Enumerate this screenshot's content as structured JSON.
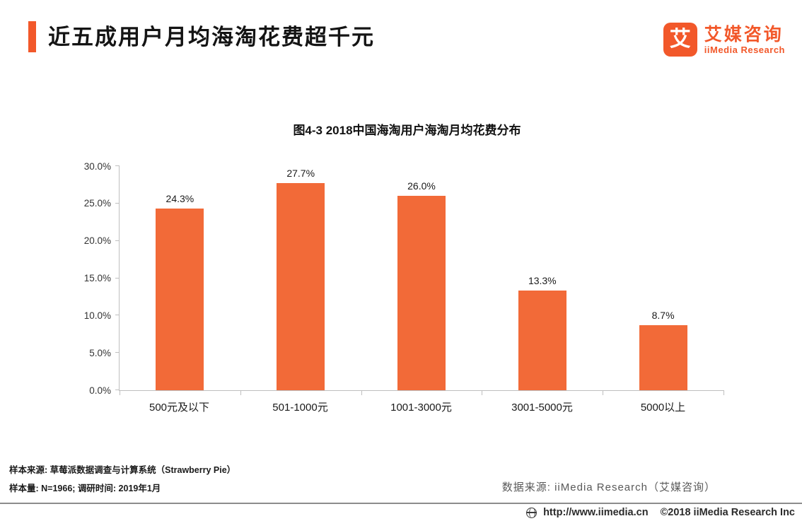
{
  "header": {
    "title": "近五成用户月均海淘花费超千元",
    "logo": {
      "glyph": "艾",
      "brand_cn": "艾媒咨询",
      "brand_en": "iiMedia Research"
    }
  },
  "chart_data": {
    "type": "bar",
    "title": "图4-3 2018中国海淘用户海淘月均花费分布",
    "categories": [
      "500元及以下",
      "501-1000元",
      "1001-3000元",
      "3001-5000元",
      "5000以上"
    ],
    "values": [
      24.3,
      27.7,
      26.0,
      13.3,
      8.7
    ],
    "value_labels": [
      "24.3%",
      "27.7%",
      "26.0%",
      "13.3%",
      "8.7%"
    ],
    "xlabel": "",
    "ylabel": "",
    "ylim": [
      0,
      30
    ],
    "yticks": [
      0,
      5,
      10,
      15,
      20,
      25,
      30
    ],
    "ytick_labels": [
      "0.0%",
      "5.0%",
      "10.0%",
      "15.0%",
      "20.0%",
      "25.0%",
      "30.0%"
    ],
    "grid": false,
    "legend": false,
    "bar_color": "#F26A38"
  },
  "footer": {
    "sample_source": "样本来源: 草莓派数据调查与计算系统（Strawberry Pie）",
    "sample_size": "样本量: N=1966; 调研时间: 2019年1月",
    "data_source": "数据来源: iiMedia Research（艾媒咨询）",
    "website": "http://www.iimedia.cn",
    "copyright": "©2018  iiMedia Research Inc"
  },
  "colors": {
    "accent": "#F2582A",
    "bar": "#F26A38",
    "axis": "#BFBFBF",
    "text_gray": "#595959"
  }
}
